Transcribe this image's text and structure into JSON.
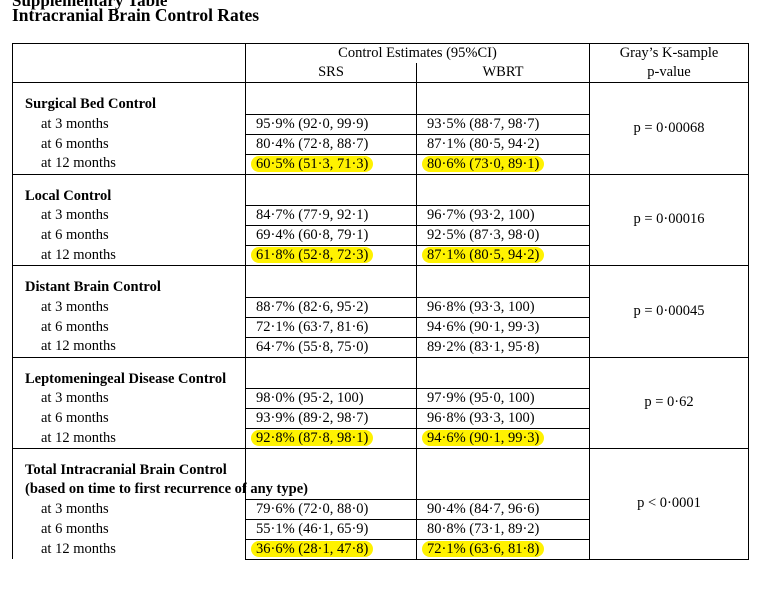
{
  "document": {
    "top_fragment": "Supplementary Table",
    "title": "Intracranial Brain Control Rates"
  },
  "table": {
    "header": {
      "estimates": "Control Estimates (95%CI)",
      "srs": "SRS",
      "wbrt": "WBRT",
      "gray_line1": "Gray’s K-sample",
      "gray_line2": "p-value"
    },
    "sections": [
      {
        "title": "Surgical Bed Control",
        "subtitle": "",
        "p_value": "p = 0·00068",
        "rows": [
          {
            "label": "at 3 months",
            "srs": "95·9% (92·0, 99·9)",
            "wbrt": "93·5% (88·7, 98·7)",
            "highlight": false
          },
          {
            "label": "at 6 months",
            "srs": "80·4% (72·8, 88·7)",
            "wbrt": "87·1% (80·5, 94·2)",
            "highlight": false
          },
          {
            "label": "at 12 months",
            "srs": "60·5% (51·3, 71·3)",
            "wbrt": "80·6% (73·0, 89·1)",
            "highlight": true
          }
        ]
      },
      {
        "title": "Local Control",
        "subtitle": "",
        "p_value": "p = 0·00016",
        "rows": [
          {
            "label": "at 3 months",
            "srs": "84·7% (77·9, 92·1)",
            "wbrt": "96·7% (93·2, 100)",
            "highlight": false
          },
          {
            "label": "at 6 months",
            "srs": "69·4% (60·8, 79·1)",
            "wbrt": "92·5% (87·3, 98·0)",
            "highlight": false
          },
          {
            "label": "at 12 months",
            "srs": "61·8% (52·8, 72·3)",
            "wbrt": "87·1% (80·5, 94·2)",
            "highlight": true
          }
        ]
      },
      {
        "title": "Distant Brain Control",
        "subtitle": "",
        "p_value": "p = 0·00045",
        "rows": [
          {
            "label": "at 3 months",
            "srs": "88·7% (82·6, 95·2)",
            "wbrt": "96·8% (93·3, 100)",
            "highlight": false
          },
          {
            "label": "at 6 months",
            "srs": "72·1% (63·7, 81·6)",
            "wbrt": "94·6% (90·1, 99·3)",
            "highlight": false
          },
          {
            "label": "at 12 months",
            "srs": "64·7% (55·8, 75·0)",
            "wbrt": "89·2% (83·1, 95·8)",
            "highlight": false
          }
        ]
      },
      {
        "title": "Leptomeningeal Disease Control",
        "subtitle": "",
        "p_value": "p = 0·62",
        "rows": [
          {
            "label": "at 3 months",
            "srs": "98·0% (95·2, 100)",
            "wbrt": "97·9% (95·0, 100)",
            "highlight": false
          },
          {
            "label": "at 6 months",
            "srs": "93·9% (89·2, 98·7)",
            "wbrt": "96·8% (93·3, 100)",
            "highlight": false
          },
          {
            "label": "at 12 months",
            "srs": "92·8% (87·8, 98·1)",
            "wbrt": "94·6% (90·1, 99·3)",
            "highlight": true
          }
        ]
      },
      {
        "title": "Total Intracranial Brain Control",
        "subtitle": "(based on time to first recurrence of any type)",
        "p_value": "p < 0·0001",
        "rows": [
          {
            "label": "at 3 months",
            "srs": "79·6% (72·0, 88·0)",
            "wbrt": "90·4% (84·7, 96·6)",
            "highlight": false
          },
          {
            "label": "at 6 months",
            "srs": "55·1% (46·1, 65·9)",
            "wbrt": "80·8% (73·1, 89·2)",
            "highlight": false
          },
          {
            "label": "at 12 months",
            "srs": "36·6% (28·1, 47·8)",
            "wbrt": "72·1% (63·6, 81·8)",
            "highlight": true
          }
        ]
      }
    ]
  },
  "colors": {
    "highlight": "#fff200",
    "text": "#000000",
    "background": "#ffffff"
  }
}
